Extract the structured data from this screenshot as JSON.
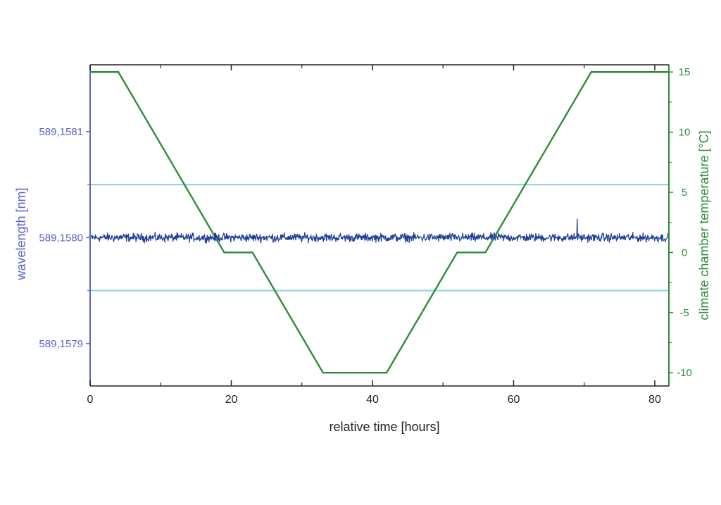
{
  "chart_data": {
    "type": "line",
    "title": "",
    "xlabel": "relative time [hours]",
    "ylabel_left": "wavelength [nm]",
    "ylabel_right": "climate chamber temperature [°C]",
    "xlim": [
      0,
      82
    ],
    "ylim_left": [
      589.15786,
      589.158163
    ],
    "ylim_right": [
      -11.1,
      15.6
    ],
    "x_ticks": [
      {
        "value": 0,
        "label": "0"
      },
      {
        "value": 20,
        "label": "20"
      },
      {
        "value": 40,
        "label": "40"
      },
      {
        "value": 60,
        "label": "60"
      },
      {
        "value": 80,
        "label": "80"
      }
    ],
    "y_left_ticks": [
      {
        "value": 589.1579,
        "label": "589,1579"
      },
      {
        "value": 589.158,
        "label": "589,1580"
      },
      {
        "value": 589.1581,
        "label": "589,1581"
      }
    ],
    "y_right_ticks": [
      {
        "value": -10,
        "label": "-10"
      },
      {
        "value": -5,
        "label": "-5"
      },
      {
        "value": 0,
        "label": "0"
      },
      {
        "value": 5,
        "label": "5"
      },
      {
        "value": 10,
        "label": "10"
      },
      {
        "value": 15,
        "label": "15"
      }
    ],
    "grid": false,
    "legend": "none",
    "series": [
      {
        "axis": "right",
        "color": "#2e8b3a",
        "x": [
          0,
          4,
          19,
          23,
          33,
          42,
          52,
          56,
          71,
          82
        ],
        "y": [
          15,
          15,
          0,
          0,
          -10,
          -10,
          0,
          0,
          15,
          15
        ]
      },
      {
        "axis": "left",
        "color": "#1f3c99",
        "kind": "noise",
        "mean": 589.158,
        "amplitude": 2.5e-06,
        "spike": {
          "x": 69,
          "y": 589.158018
        }
      }
    ],
    "reference_lines": {
      "axis": "left",
      "color": "#8fd6e2",
      "values": [
        589.15805,
        589.15795
      ]
    },
    "colors": {
      "left_axis": "#5a64c4",
      "right_axis": "#2e8b3a",
      "frame": "#222222"
    }
  }
}
